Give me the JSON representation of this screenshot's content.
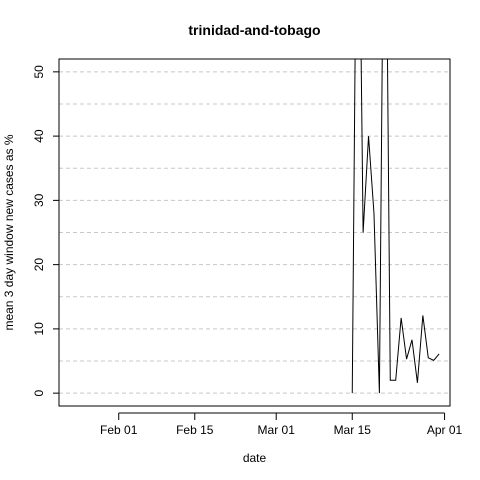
{
  "chart_data": {
    "type": "line",
    "title": "trinidad-and-tobago",
    "xlabel": "date",
    "ylabel": "mean  3  day window new cases as %",
    "x_tick_labels": [
      "Feb 01",
      "Feb 15",
      "Mar 01",
      "Mar 15",
      "Apr 01"
    ],
    "x_ticks": [
      "2020-02-01",
      "2020-02-15",
      "2020-03-01",
      "2020-03-15",
      "2020-04-01"
    ],
    "xlim": [
      "2020-01-21",
      "2020-04-02"
    ],
    "y_tick_labels": [
      "0",
      "10",
      "20",
      "30",
      "40",
      "50"
    ],
    "y_ticks": [
      0,
      10,
      20,
      30,
      40,
      50
    ],
    "ylim": [
      -2,
      52
    ],
    "grid": true,
    "grid_style": "dashed horizontal",
    "line_color": "#000000",
    "series": [
      {
        "x": [
          "2020-03-15",
          "2020-03-16",
          "2020-03-17",
          "2020-03-18",
          "2020-03-19",
          "2020-03-20",
          "2020-03-21",
          "2020-03-22",
          "2020-03-23",
          "2020-03-24",
          "2020-03-25",
          "2020-03-26",
          "2020-03-27",
          "2020-03-28",
          "2020-03-29",
          "2020-03-30",
          "2020-03-31"
        ],
        "y": [
          0,
          100,
          25,
          40,
          28,
          0,
          100,
          2,
          2,
          11.7,
          5.3,
          8.3,
          1.6,
          12.1,
          5.5,
          5.1,
          6.1
        ]
      }
    ]
  }
}
